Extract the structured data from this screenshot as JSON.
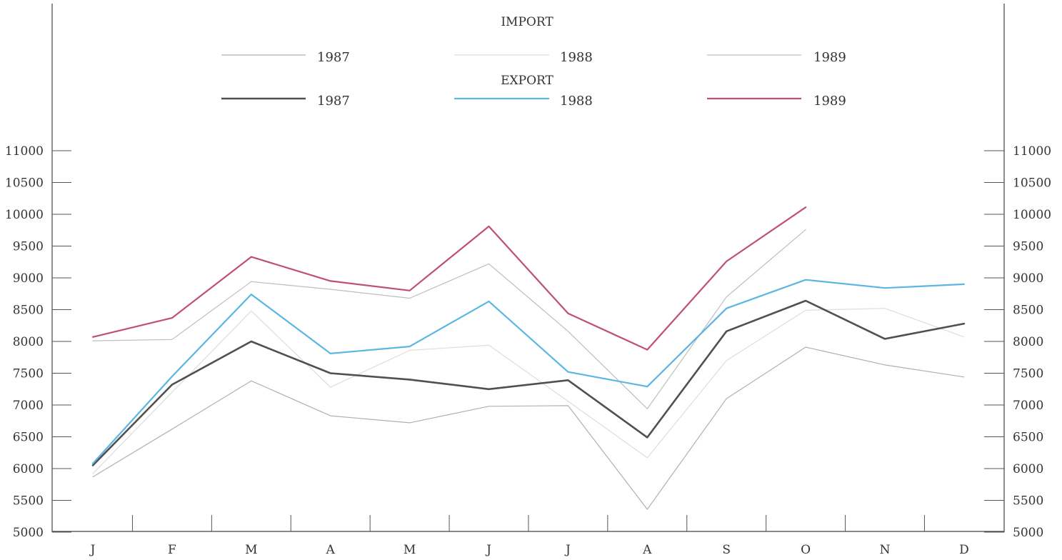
{
  "chart_data": {
    "type": "line",
    "categories": [
      "J",
      "F",
      "M",
      "A",
      "M",
      "J",
      "J",
      "A",
      "S",
      "O",
      "N",
      "D"
    ],
    "ylim": [
      5000,
      11000
    ],
    "yticks": [
      5000,
      5500,
      6000,
      6500,
      7000,
      7500,
      8000,
      8500,
      9000,
      9500,
      10000,
      10500,
      11000
    ],
    "ytick_labels": [
      "5000",
      "5500",
      "6000",
      "6500",
      "7000",
      "7500",
      "8000",
      "8500",
      "9000",
      "9500",
      "10000",
      "10500",
      "11000"
    ],
    "grid": false,
    "legend_position": "top",
    "legend": {
      "import_title": "IMPORT",
      "export_title": "EXPORT"
    },
    "series": [
      {
        "name": "1987",
        "group": "import",
        "color": "#b0b0b0",
        "width": 1.2,
        "values": [
          5870,
          6620,
          7380,
          6830,
          6720,
          6980,
          6990,
          5360,
          7100,
          7910,
          7630,
          7440
        ]
      },
      {
        "name": "1988",
        "group": "import",
        "color": "#dddddd",
        "width": 1.2,
        "values": [
          5920,
          7200,
          8480,
          7280,
          7860,
          7940,
          7060,
          6170,
          7700,
          8490,
          8520,
          8070
        ]
      },
      {
        "name": "1989",
        "group": "import",
        "color": "#bdbdbd",
        "width": 1.2,
        "values": [
          8010,
          8030,
          8940,
          8820,
          8680,
          9220,
          8160,
          6940,
          8700,
          9760,
          null,
          null
        ]
      },
      {
        "name": "1987",
        "group": "export",
        "color": "#505050",
        "width": 2.6,
        "values": [
          6050,
          7320,
          8000,
          7500,
          7400,
          7250,
          7390,
          6490,
          8160,
          8640,
          8040,
          8280
        ]
      },
      {
        "name": "1988",
        "group": "export",
        "color": "#5ab6e2",
        "width": 2.2,
        "values": [
          6080,
          7450,
          8740,
          7810,
          7920,
          8630,
          7520,
          7290,
          8520,
          8970,
          8840,
          8900
        ]
      },
      {
        "name": "1989",
        "group": "export",
        "color": "#c0506f",
        "width": 2.2,
        "values": [
          8070,
          8370,
          9330,
          8950,
          8800,
          9810,
          8440,
          7870,
          9260,
          10110,
          null,
          null
        ]
      }
    ]
  }
}
